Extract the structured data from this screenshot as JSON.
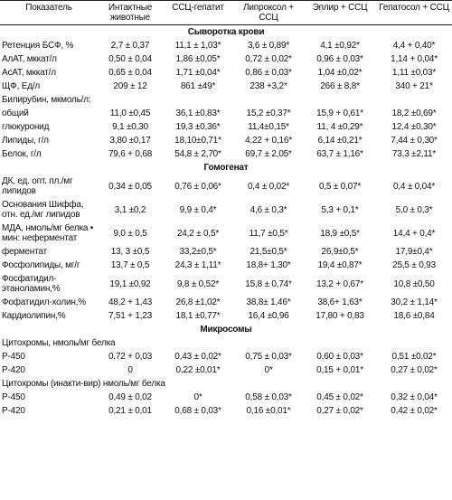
{
  "table": {
    "header": [
      "Показатель",
      "Интактные животные",
      "ССЦ-гепатит",
      "Липроксол + ССЦ",
      "Эплир + ССЦ",
      "Гепатосол + ССЦ"
    ],
    "sections": [
      {
        "title": "Сыворотка крови",
        "rows": [
          [
            "Ретенция БСФ, %",
            "2,7 ± 0,37",
            "11,1 ± 1,03*",
            "3,6 ± 0,89*",
            "4,1 ±0,92*",
            "4,4 + 0,40*"
          ],
          [
            "АлАТ, мккат/л",
            "0,50 ± 0,04",
            "1,86 ±0,05*",
            "0,72 ± 0,02*",
            "0,96 ± 0,03*",
            "1,14 + 0,04*"
          ],
          [
            "АсАТ, мккат/л",
            "0,65 ± 0,04",
            "1,71 ±0,04*",
            "0,86 ± 0,03*",
            "1,04 ±0,02*",
            "1,11 ±0,03*"
          ],
          [
            "ЩФ, Ед/л",
            "209 ± 12",
            "861 ±49*",
            "238 +3,2*",
            "266 ± 8,8*",
            "340 + 21*"
          ],
          [
            "Билирубин, мкмоль/л:"
          ],
          [
            "общий",
            "11,0 ±0,45",
            "36,1 ±0,83*",
            "15,2 ±0,37*",
            "15,9 + 0,61*",
            "18,2 ±0,69*"
          ],
          [
            "глюкуронид",
            "9,1 ±0,30",
            "19,3 ±0,36*",
            "11,4±0,15*",
            "11, 4 ±0,29*",
            "12,4 ±0,30*"
          ],
          [
            "Липиды, г/л",
            "3,80 ±0,17",
            "18,10±0,71*",
            "4,22 + 0,16*",
            "6,14 ±0,21*",
            "7,44 ± 0,30*"
          ],
          [
            "Белок, г/л",
            "79,6 + 0,68",
            "54,8 ± 2,70*",
            "69,7 ± 2,05*",
            "63,7 ± 1,16*",
            "73,3 ±2,11*"
          ]
        ]
      },
      {
        "title": "Гомогенат",
        "rows": [
          [
            "ДК, ед. опт. пл./мг липидов",
            "0,34 ± 0,05",
            "0,76 ± 0,06*",
            "0,4 ± 0,02*",
            "0,5 ± 0,07*",
            "0,4 ± 0,04*"
          ],
          [
            "Основания Шиффа, отн. ед./мг липидов",
            "3,1 ±0,2",
            "9,9 ± 0,4*",
            "4,6 ± 0,3*",
            "5,3 + 0,1*",
            "5,0 ± 0,3*"
          ],
          [
            "МДА, нмоль/мг белка • мин: неферментат",
            "9,0 ± 0,5",
            "24,2 ± 0,5*",
            "11,7 ±0,5*",
            "18,9 ±0,5*",
            "14,4 + 0,4*"
          ],
          [
            "ферментат",
            "13, 3 ±0,5",
            "33,2±0,5*",
            "21,5±0,5*",
            "26,9±0,5*",
            "17,9±0,4*"
          ],
          [
            "Фосфолипиды, мг/г",
            "13,7 ± 0,5",
            "24,3 ± 1,11*",
            "18,8+ 1,30*",
            "19,4 ±0,87*",
            "25,5 ± 0,93"
          ],
          [
            "Фосфатидил-этаноламин,%",
            "19,1 ±0,92",
            "9,8 ± 0,52*",
            "15,8 ± 0,74*",
            "13,2 + 0,67*",
            "10,8 ±0,50"
          ],
          [
            "Фофатидил-холин,%",
            "48,2 + 1,43",
            "26,8 ±1,02*",
            "38,8± 1,46*",
            "38,6+ 1,63*",
            "30,2 ± 1,14*"
          ],
          [
            "Кардиолипин,%",
            "7,51 + 1,23",
            "18,1 ±0,77*",
            "16,4 ±0,96",
            "17,80 + 0,83",
            "18,6 ±0,84"
          ]
        ]
      },
      {
        "title": "Микросомы",
        "rows": [
          [
            "Цитохромы, нмоль/мг белка"
          ],
          [
            "Р-450",
            "0,72 + 0,03",
            "0,43 ± 0,02*",
            "0,75 ± 0,03*",
            "0,60 ± 0,03*",
            "0,51 ±0,02*"
          ],
          [
            "Р-420",
            "0",
            "0,22 ±0,01*",
            "0*",
            "0,15 + 0,01*",
            "0,27 ± 0,02*"
          ],
          [
            "Цитохромы (инакти-вир) нмоль/мг белка"
          ],
          [
            "Р-450",
            "0,49 ± 0,02",
            "0*",
            "0,58 ± 0,03*",
            "0,45 ± 0,02*",
            "0,32 ± 0,04*"
          ],
          [
            "Р-420",
            "0,21 ± 0,01",
            "0,68 ± 0,03*",
            "0,16 ±0,01*",
            "0,27 ± 0,02*",
            "0,42 ± 0,02*"
          ]
        ]
      }
    ]
  }
}
